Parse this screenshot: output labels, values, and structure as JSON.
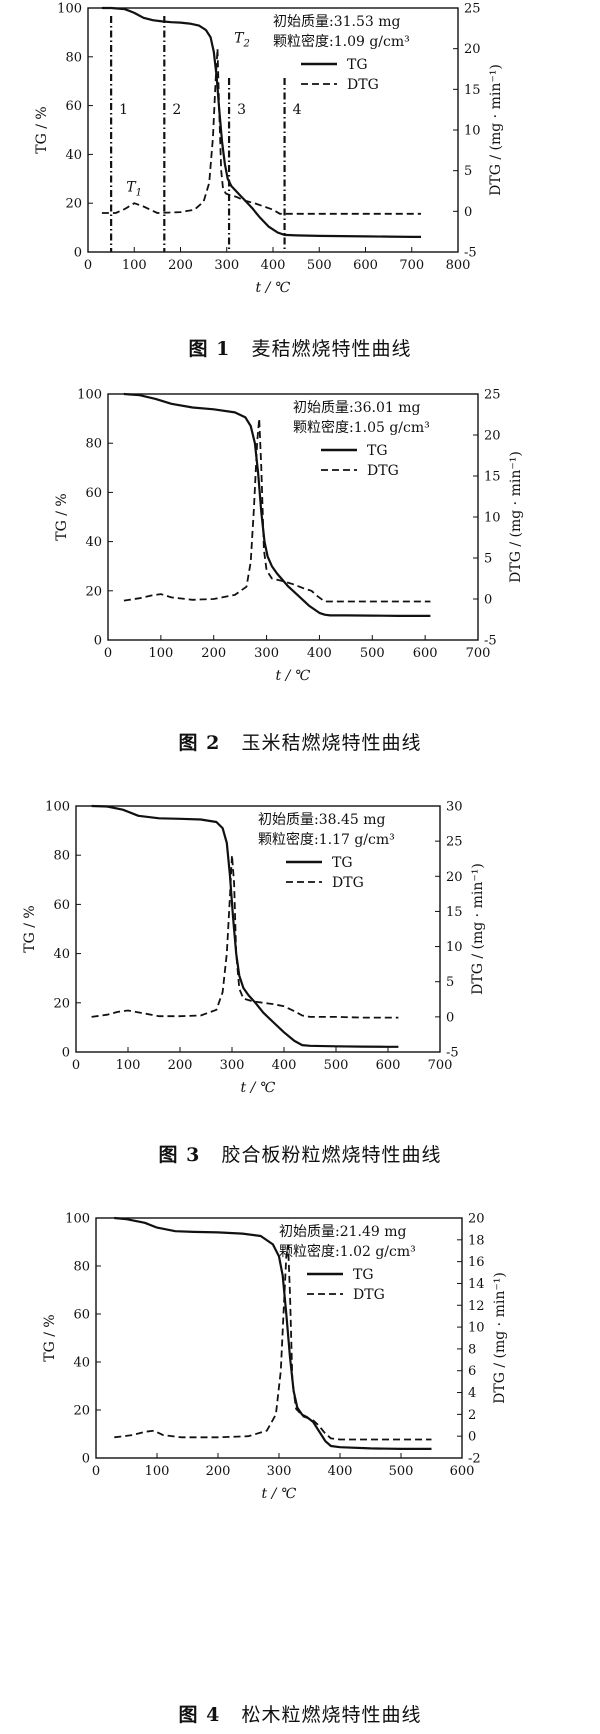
{
  "chart_data": [
    {
      "type": "line",
      "caption_num": "图 1",
      "caption_text": "麦秸燃烧特性曲线",
      "xlabel": "t / ℃",
      "ylabel": "TG / %",
      "y2label": "DTG / (mg · min⁻¹)",
      "xlim": [
        0,
        800
      ],
      "xticks": [
        0,
        100,
        200,
        300,
        400,
        500,
        600,
        700,
        800
      ],
      "ylim": [
        0,
        100
      ],
      "yticks": [
        0,
        20,
        40,
        60,
        80,
        100
      ],
      "y2lim": [
        -5,
        25
      ],
      "y2ticks": [
        -5,
        0,
        5,
        10,
        15,
        20,
        25
      ],
      "annotations": [
        "初始质量:31.53 mg",
        "颗粒密度:1.09 g/cm³"
      ],
      "legend": [
        "TG",
        "DTG"
      ],
      "legend_position": "top-right",
      "peak_labels": [
        {
          "text": "T",
          "sub": "1",
          "x": 100,
          "y2": 1.2
        },
        {
          "text": "T",
          "sub": "2",
          "x": 290,
          "y2": 21
        }
      ],
      "region_lines": [
        50,
        165,
        305,
        425
      ],
      "region_labels": [
        "1",
        "2",
        "3",
        "4"
      ],
      "series": [
        {
          "name": "TG",
          "style": "solid",
          "x": [
            30,
            50,
            80,
            100,
            120,
            140,
            160,
            180,
            200,
            220,
            240,
            255,
            265,
            272,
            278,
            284,
            290,
            296,
            302,
            310,
            320,
            330,
            340,
            355,
            370,
            390,
            410,
            425,
            450,
            500,
            550,
            600,
            650,
            700,
            720
          ],
          "y": [
            100,
            100,
            99.5,
            98,
            96,
            95,
            94.5,
            94.2,
            94,
            93.6,
            92.8,
            91,
            88,
            82,
            72,
            58,
            45,
            36,
            30,
            27,
            25,
            23,
            21,
            18,
            14.5,
            10.5,
            8,
            7,
            6.8,
            6.6,
            6.5,
            6.4,
            6.3,
            6.2,
            6.2
          ]
        },
        {
          "name": "DTG",
          "style": "dashed",
          "x": [
            30,
            60,
            80,
            100,
            120,
            150,
            200,
            230,
            250,
            262,
            270,
            276,
            280,
            284,
            288,
            292,
            298,
            306,
            320,
            340,
            360,
            380,
            400,
            415,
            425,
            450,
            500,
            600,
            700,
            720
          ],
          "y": [
            -0.2,
            -0.2,
            0.3,
            1.0,
            0.6,
            -0.2,
            -0.1,
            0.2,
            1.2,
            3.5,
            9,
            16,
            20,
            12,
            5,
            2.8,
            2.2,
            2.0,
            1.8,
            1.3,
            1.0,
            0.6,
            0.2,
            -0.3,
            -0.3,
            -0.3,
            -0.3,
            -0.3,
            -0.3,
            -0.3
          ]
        }
      ]
    },
    {
      "type": "line",
      "caption_num": "图 2",
      "caption_text": "玉米秸燃烧特性曲线",
      "xlabel": "t / ℃",
      "ylabel": "TG / %",
      "y2label": "DTG / (mg · min⁻¹)",
      "xlim": [
        0,
        700
      ],
      "xticks": [
        0,
        100,
        200,
        300,
        400,
        500,
        600,
        700
      ],
      "ylim": [
        0,
        100
      ],
      "yticks": [
        0,
        20,
        40,
        60,
        80,
        100
      ],
      "y2lim": [
        -5,
        25
      ],
      "y2ticks": [
        -5,
        0,
        5,
        10,
        15,
        20,
        25
      ],
      "annotations": [
        "初始质量:36.01 mg",
        "颗粒密度:1.05 g/cm³"
      ],
      "legend": [
        "TG",
        "DTG"
      ],
      "legend_position": "top-right",
      "series": [
        {
          "name": "TG",
          "style": "solid",
          "x": [
            30,
            60,
            90,
            120,
            160,
            200,
            240,
            260,
            270,
            278,
            284,
            290,
            296,
            302,
            310,
            320,
            340,
            360,
            380,
            400,
            410,
            420,
            450,
            500,
            550,
            600,
            610
          ],
          "y": [
            100,
            99.5,
            98,
            96,
            94.5,
            93.8,
            92.5,
            90.5,
            87,
            80,
            68,
            52,
            40,
            34,
            30,
            27,
            22,
            18,
            14,
            11,
            10.3,
            10,
            10,
            9.9,
            9.8,
            9.8,
            9.8
          ]
        },
        {
          "name": "DTG",
          "style": "dashed",
          "x": [
            30,
            60,
            80,
            100,
            120,
            160,
            200,
            240,
            262,
            270,
            276,
            282,
            286,
            290,
            295,
            300,
            310,
            330,
            350,
            370,
            385,
            395,
            410,
            450,
            500,
            550,
            600,
            610
          ],
          "y": [
            -0.2,
            0.1,
            0.4,
            0.6,
            0.2,
            -0.1,
            0.0,
            0.5,
            1.5,
            4.5,
            11,
            19,
            22,
            16,
            6,
            3.5,
            2.5,
            2.2,
            1.8,
            1.3,
            1.0,
            0.4,
            -0.3,
            -0.3,
            -0.3,
            -0.3,
            -0.3,
            -0.3
          ]
        }
      ]
    },
    {
      "type": "line",
      "caption_num": "图 3",
      "caption_text": "胶合板粉粒燃烧特性曲线",
      "xlabel": "t / ℃",
      "ylabel": "TG / %",
      "y2label": "DTG / (mg · min⁻¹)",
      "xlim": [
        0,
        700
      ],
      "xticks": [
        0,
        100,
        200,
        300,
        400,
        500,
        600,
        700
      ],
      "ylim": [
        0,
        100
      ],
      "yticks": [
        0,
        20,
        40,
        60,
        80,
        100
      ],
      "y2lim": [
        -5,
        30
      ],
      "y2ticks": [
        -5,
        0,
        5,
        10,
        15,
        20,
        25,
        30
      ],
      "annotations": [
        "初始质量:38.45 mg",
        "颗粒密度:1.17 g/cm³"
      ],
      "legend": [
        "TG",
        "DTG"
      ],
      "legend_position": "top-right",
      "series": [
        {
          "name": "TG",
          "style": "solid",
          "x": [
            30,
            60,
            90,
            120,
            160,
            200,
            240,
            270,
            282,
            290,
            296,
            302,
            308,
            314,
            322,
            332,
            345,
            360,
            380,
            400,
            420,
            435,
            450,
            500,
            550,
            600,
            620
          ],
          "y": [
            100,
            99.8,
            98.5,
            96,
            95,
            94.8,
            94.5,
            93.5,
            91,
            85,
            72,
            55,
            40,
            31,
            26,
            23,
            20,
            16,
            12,
            8,
            4.5,
            2.8,
            2.5,
            2.3,
            2.2,
            2.1,
            2.1
          ]
        },
        {
          "name": "DTG",
          "style": "dashed",
          "x": [
            30,
            60,
            80,
            100,
            130,
            160,
            200,
            240,
            270,
            282,
            290,
            296,
            300,
            304,
            308,
            314,
            322,
            340,
            360,
            380,
            400,
            420,
            435,
            450,
            500,
            550,
            600,
            620
          ],
          "y": [
            0.0,
            0.3,
            0.7,
            0.9,
            0.5,
            0.1,
            0.1,
            0.2,
            1.0,
            3.5,
            9,
            17,
            23,
            19,
            9,
            4,
            2.6,
            2.2,
            2.0,
            1.8,
            1.5,
            0.8,
            0.2,
            0.0,
            0.0,
            -0.1,
            -0.1,
            -0.1
          ]
        }
      ]
    },
    {
      "type": "line",
      "caption_num": "图 4",
      "caption_text": "松木粒燃烧特性曲线",
      "xlabel": "t / ℃",
      "ylabel": "TG / %",
      "y2label": "DTG / (mg · min⁻¹)",
      "xlim": [
        0,
        600
      ],
      "xticks": [
        0,
        100,
        200,
        300,
        400,
        500,
        600
      ],
      "ylim": [
        0,
        100
      ],
      "yticks": [
        0,
        20,
        40,
        60,
        80,
        100
      ],
      "y2lim": [
        -2,
        20
      ],
      "y2ticks": [
        -2,
        0,
        2,
        4,
        6,
        8,
        10,
        12,
        14,
        16,
        18,
        20
      ],
      "annotations": [
        "初始质量:21.49 mg",
        "颗粒密度:1.02 g/cm³"
      ],
      "legend": [
        "TG",
        "DTG"
      ],
      "legend_position": "top-right",
      "series": [
        {
          "name": "TG",
          "style": "solid",
          "x": [
            30,
            50,
            80,
            100,
            130,
            160,
            200,
            240,
            270,
            290,
            300,
            306,
            312,
            318,
            324,
            330,
            338,
            346,
            356,
            366,
            376,
            385,
            400,
            450,
            500,
            550
          ],
          "y": [
            100,
            99.5,
            98,
            96,
            94.5,
            94.2,
            94,
            93.5,
            92.5,
            89,
            84,
            76,
            60,
            42,
            28,
            21,
            18,
            17,
            15,
            11,
            7,
            5,
            4.5,
            4,
            3.8,
            3.8
          ]
        },
        {
          "name": "DTG",
          "style": "dashed",
          "x": [
            30,
            60,
            80,
            95,
            110,
            140,
            200,
            250,
            280,
            295,
            303,
            308,
            312,
            315,
            318,
            322,
            328,
            340,
            355,
            365,
            375,
            385,
            400,
            450,
            500,
            550
          ],
          "y": [
            -0.1,
            0.1,
            0.4,
            0.5,
            0.1,
            -0.1,
            -0.1,
            0.0,
            0.5,
            2.0,
            6,
            12,
            16.5,
            17.5,
            13,
            5,
            2.5,
            1.8,
            1.5,
            1.0,
            0.3,
            -0.2,
            -0.3,
            -0.3,
            -0.3,
            -0.3
          ]
        }
      ]
    }
  ]
}
